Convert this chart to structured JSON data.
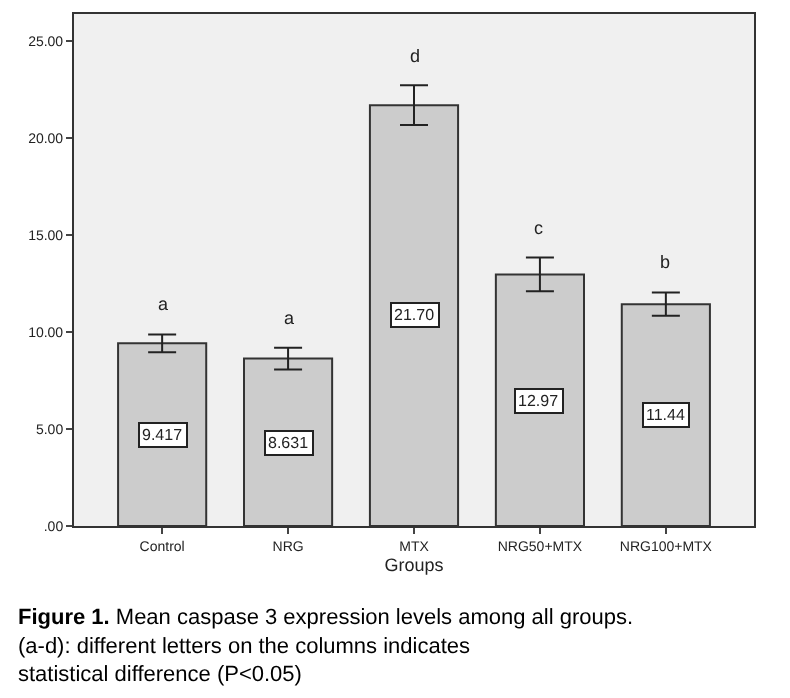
{
  "chart_data": {
    "type": "bar",
    "xlabel": "Groups",
    "categories": [
      "Control",
      "NRG",
      "MTX",
      "NRG50+MTX",
      "NRG100+MTX"
    ],
    "values": [
      9.417,
      8.631,
      21.7,
      12.97,
      11.44
    ],
    "value_labels": [
      "9.417",
      "8.631",
      "21.70",
      "12.97",
      "11.44"
    ],
    "errors": [
      0.46,
      0.56,
      1.03,
      0.87,
      0.6
    ],
    "color": "#cccccc",
    "ylim": [
      0,
      26.4
    ],
    "yticks": [
      {
        "value": 0,
        "label": ".00"
      },
      {
        "value": 5,
        "label": "5.00"
      },
      {
        "value": 10,
        "label": "10.00"
      },
      {
        "value": 15,
        "label": "15.00"
      },
      {
        "value": 20,
        "label": "20.00"
      },
      {
        "value": 25,
        "label": "25.00"
      }
    ],
    "grid": false,
    "legend": false,
    "annotations": [
      "a",
      "a",
      "d",
      "c",
      "b",
      "Figure 1. Mean caspase 3 expression levels among all groups. (a-d): different letters on the columns indicates statistical difference (P<0.05)"
    ]
  }
}
